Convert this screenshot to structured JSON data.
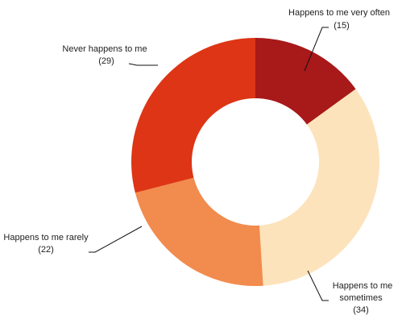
{
  "chart_data": {
    "type": "pie",
    "donut": true,
    "slices": [
      {
        "label": "Happens to me very often",
        "value": 15,
        "value_text": "(15)",
        "color": "#a8191a"
      },
      {
        "label": "Happens to me sometimes",
        "value": 34,
        "value_text": "(34)",
        "color": "#fde3bb"
      },
      {
        "label": "Happens to me rarely",
        "value": 22,
        "value_text": "(22)",
        "color": "#f28b4e"
      },
      {
        "label": "Never happens to me",
        "value": 29,
        "value_text": "(29)",
        "color": "#dd3515"
      }
    ],
    "legend": "none"
  }
}
